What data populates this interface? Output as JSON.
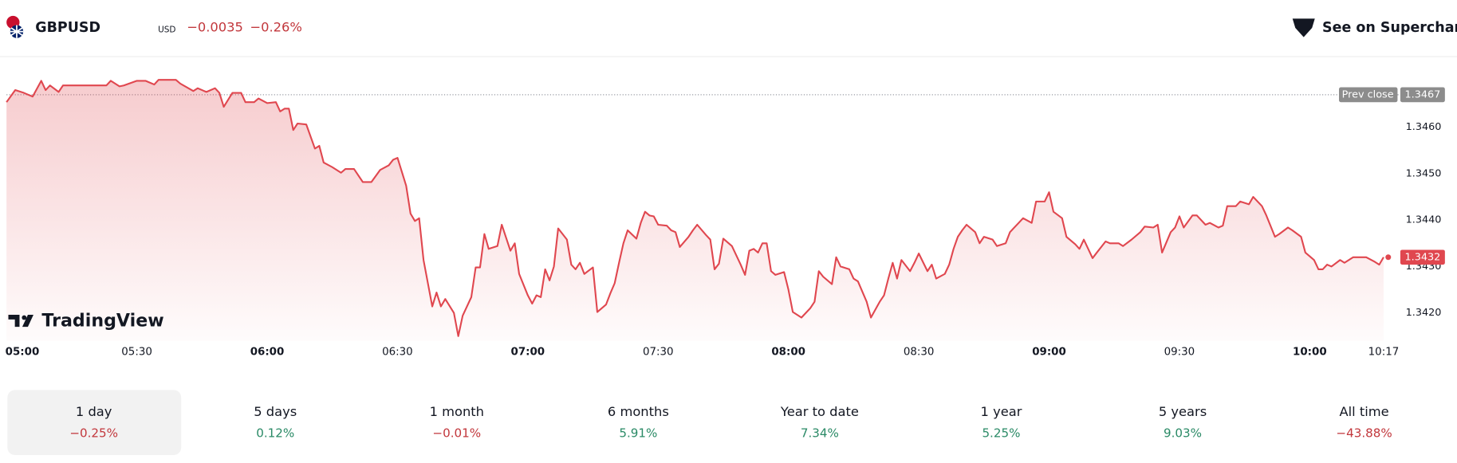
{
  "header": {
    "symbol": "GBPUSD",
    "currency": "USD",
    "change": "−0.0035",
    "change_percent": "−0.26%",
    "link": "See on Supercharts",
    "brand": "TradingView"
  },
  "chart_data": {
    "type": "area",
    "color": "#e0474f",
    "grid": false,
    "xlim": [
      "05:00",
      "10:17"
    ],
    "ylim": [
      1.3414,
      1.3474
    ],
    "xticks": [
      "05:00",
      "05:30",
      "06:00",
      "06:30",
      "07:00",
      "07:30",
      "08:00",
      "08:30",
      "09:00",
      "09:30",
      "10:00",
      "10:17"
    ],
    "yticks": [
      {
        "value": 1.342,
        "label": "1.3420"
      },
      {
        "value": 1.343,
        "label": "1.3430"
      },
      {
        "value": 1.344,
        "label": "1.3440"
      },
      {
        "value": 1.345,
        "label": "1.3450"
      },
      {
        "value": 1.346,
        "label": "1.3460"
      }
    ],
    "prev_close": {
      "label": "Prev close",
      "value": 1.3467
    },
    "x": [
      "05:00",
      "05:02",
      "05:04",
      "05:06",
      "05:08",
      "05:09",
      "05:10",
      "05:12",
      "05:13",
      "05:16",
      "05:20",
      "05:23",
      "05:24",
      "05:26",
      "05:27",
      "05:30",
      "05:32",
      "05:34",
      "05:35",
      "05:39",
      "05:40",
      "05:43",
      "05:44",
      "05:46",
      "05:48",
      "05:49",
      "05:50",
      "05:52",
      "05:54",
      "05:55",
      "05:57",
      "05:58",
      "06:00",
      "06:02",
      "06:03",
      "06:04",
      "06:05",
      "06:06",
      "06:07",
      "06:09",
      "06:11",
      "06:12",
      "06:13",
      "06:15",
      "06:17",
      "06:18",
      "06:20",
      "06:22",
      "06:24",
      "06:26",
      "06:28",
      "06:29",
      "06:30",
      "06:32",
      "06:33",
      "06:34",
      "06:35",
      "06:36",
      "06:38",
      "06:39",
      "06:40",
      "06:41",
      "06:43",
      "06:44",
      "06:45",
      "06:47",
      "06:48",
      "06:49",
      "06:50",
      "06:51",
      "06:53",
      "06:54",
      "06:56",
      "06:57",
      "06:58",
      "07:00",
      "07:01",
      "07:02",
      "07:03",
      "07:04",
      "07:05",
      "07:06",
      "07:07",
      "07:09",
      "07:10",
      "07:11",
      "07:12",
      "07:13",
      "07:15",
      "07:16",
      "07:18",
      "07:19",
      "07:20",
      "07:21",
      "07:22",
      "07:23",
      "07:25",
      "07:26",
      "07:27",
      "07:28",
      "07:29",
      "07:30",
      "07:32",
      "07:33",
      "07:34",
      "07:35",
      "07:37",
      "07:38",
      "07:39",
      "07:41",
      "07:42",
      "07:43",
      "07:44",
      "07:45",
      "07:47",
      "07:49",
      "07:50",
      "07:51",
      "07:52",
      "07:53",
      "07:54",
      "07:55",
      "07:56",
      "07:57",
      "07:59",
      "08:00",
      "08:01",
      "08:03",
      "08:05",
      "08:06",
      "08:07",
      "08:08",
      "08:10",
      "08:11",
      "08:12",
      "08:14",
      "08:15",
      "08:16",
      "08:18",
      "08:19",
      "08:21",
      "08:22",
      "08:23",
      "08:24",
      "08:25",
      "08:26",
      "08:28",
      "08:29",
      "08:30",
      "08:32",
      "08:33",
      "08:34",
      "08:36",
      "08:37",
      "08:38",
      "08:39",
      "08:40",
      "08:41",
      "08:43",
      "08:44",
      "08:45",
      "08:47",
      "08:48",
      "08:50",
      "08:51",
      "08:53",
      "08:54",
      "08:56",
      "08:57",
      "08:59",
      "09:00",
      "09:01",
      "09:03",
      "09:04",
      "09:06",
      "09:07",
      "09:08",
      "09:10",
      "09:11",
      "09:13",
      "09:14",
      "09:16",
      "09:17",
      "09:19",
      "09:21",
      "09:22",
      "09:24",
      "09:25",
      "09:26",
      "09:28",
      "09:29",
      "09:30",
      "09:31",
      "09:33",
      "09:34",
      "09:36",
      "09:37",
      "09:39",
      "09:40",
      "09:41",
      "09:43",
      "09:44",
      "09:46",
      "09:47",
      "09:49",
      "09:50",
      "09:52",
      "09:53",
      "09:55",
      "09:56",
      "09:58",
      "09:59",
      "10:01",
      "10:02",
      "10:03",
      "10:04",
      "10:05",
      "10:07",
      "10:08",
      "10:09",
      "10:10",
      "10:12",
      "10:13",
      "10:15",
      "10:16",
      "10:17"
    ],
    "values": [
      1.34654,
      1.3468,
      1.34674,
      1.34666,
      1.347,
      1.3468,
      1.3469,
      1.34676,
      1.3469,
      1.3469,
      1.3469,
      1.3469,
      1.347,
      1.34688,
      1.3469,
      1.347,
      1.347,
      1.34692,
      1.34702,
      1.34702,
      1.34694,
      1.34678,
      1.34684,
      1.34676,
      1.34684,
      1.34674,
      1.34644,
      1.34674,
      1.34674,
      1.34654,
      1.34654,
      1.34662,
      1.34652,
      1.34654,
      1.34634,
      1.3464,
      1.3464,
      1.34594,
      1.34608,
      1.34606,
      1.34554,
      1.3456,
      1.34524,
      1.34514,
      1.34502,
      1.3451,
      1.3451,
      1.34482,
      1.34482,
      1.34508,
      1.34518,
      1.3453,
      1.34534,
      1.34474,
      1.34414,
      1.34398,
      1.34404,
      1.34314,
      1.34214,
      1.34244,
      1.34214,
      1.3423,
      1.342,
      1.3415,
      1.34194,
      1.34234,
      1.34298,
      1.34298,
      1.3437,
      1.34338,
      1.34344,
      1.3439,
      1.34334,
      1.3435,
      1.34284,
      1.34238,
      1.3422,
      1.34238,
      1.34234,
      1.34294,
      1.3427,
      1.343,
      1.34382,
      1.34358,
      1.34304,
      1.34294,
      1.34308,
      1.34284,
      1.34298,
      1.34202,
      1.34218,
      1.34242,
      1.34264,
      1.34308,
      1.3435,
      1.34378,
      1.3436,
      1.34394,
      1.34418,
      1.3441,
      1.34408,
      1.3439,
      1.34388,
      1.34378,
      1.34374,
      1.34342,
      1.34364,
      1.34378,
      1.3439,
      1.34368,
      1.34358,
      1.34294,
      1.34306,
      1.3436,
      1.34344,
      1.34304,
      1.34282,
      1.34334,
      1.34338,
      1.3433,
      1.3435,
      1.3435,
      1.3429,
      1.34282,
      1.34288,
      1.3425,
      1.34202,
      1.3419,
      1.3421,
      1.34224,
      1.3429,
      1.34278,
      1.34262,
      1.3432,
      1.343,
      1.34294,
      1.34274,
      1.34268,
      1.34224,
      1.3419,
      1.34224,
      1.34238,
      1.34274,
      1.34308,
      1.34274,
      1.34314,
      1.3429,
      1.34308,
      1.34328,
      1.3429,
      1.34304,
      1.34274,
      1.34284,
      1.34304,
      1.34338,
      1.34364,
      1.34378,
      1.3439,
      1.34374,
      1.3435,
      1.34364,
      1.34358,
      1.34344,
      1.3435,
      1.34374,
      1.34394,
      1.34404,
      1.34394,
      1.3444,
      1.3444,
      1.3446,
      1.34418,
      1.34404,
      1.34364,
      1.34348,
      1.34338,
      1.34358,
      1.34318,
      1.3433,
      1.34354,
      1.3435,
      1.3435,
      1.34344,
      1.34358,
      1.34374,
      1.34386,
      1.34384,
      1.3439,
      1.3433,
      1.34374,
      1.34384,
      1.34408,
      1.34384,
      1.3441,
      1.3441,
      1.3439,
      1.34394,
      1.34384,
      1.34388,
      1.3443,
      1.3443,
      1.3444,
      1.34434,
      1.3445,
      1.3443,
      1.3441,
      1.34364,
      1.3437,
      1.34384,
      1.34378,
      1.34364,
      1.3433,
      1.34314,
      1.34294,
      1.34294,
      1.34304,
      1.343,
      1.34314,
      1.34308,
      1.34314,
      1.3432,
      1.3432,
      1.3432,
      1.3431,
      1.34304,
      1.3432
    ]
  },
  "periods": [
    {
      "label": "1 day",
      "change": "−0.25%"
    },
    {
      "label": "5 days",
      "change": "0.12%"
    },
    {
      "label": "1 month",
      "change": "−0.01%"
    },
    {
      "label": "6 months",
      "change": "5.91%"
    },
    {
      "label": "Year to date",
      "change": "7.34%"
    },
    {
      "label": "1 year",
      "change": "5.25%"
    },
    {
      "label": "5 years",
      "change": "9.03%"
    },
    {
      "label": "All time",
      "change": "−43.88%"
    }
  ]
}
